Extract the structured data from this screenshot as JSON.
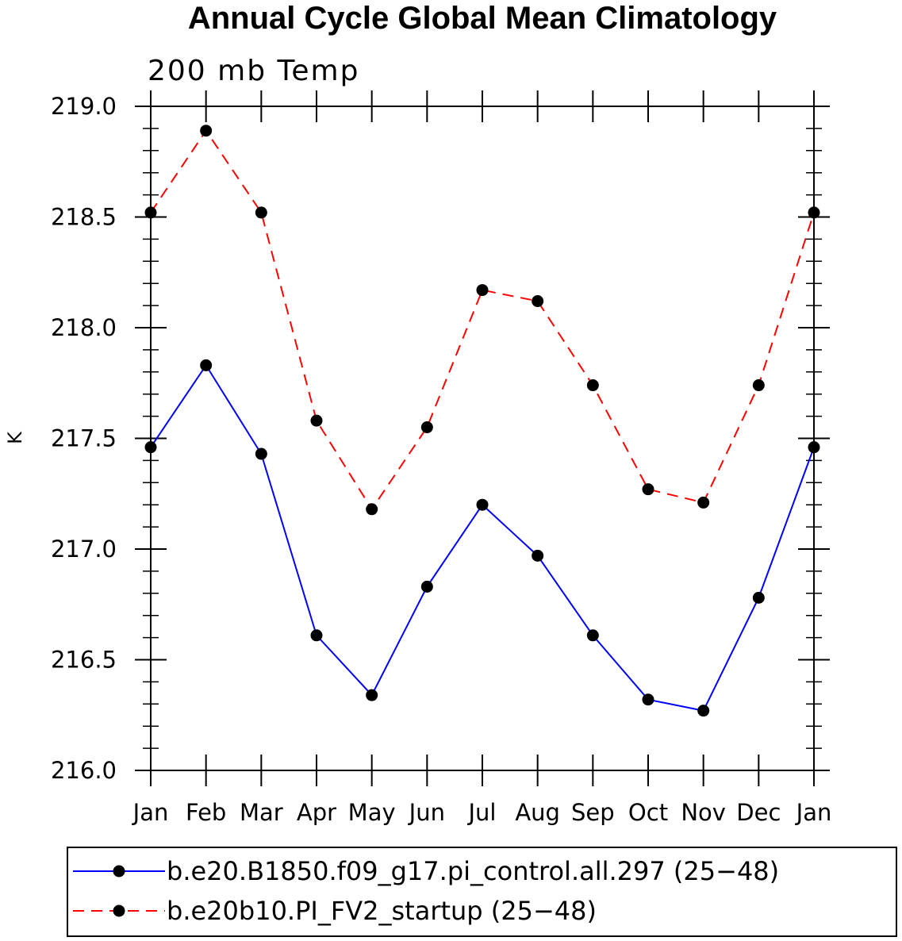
{
  "chart_data": {
    "type": "line",
    "title": "Annual Cycle Global Mean Climatology",
    "subtitle": "200 mb Temp",
    "xlabel": "",
    "ylabel": "K",
    "categories": [
      "Jan",
      "Feb",
      "Mar",
      "Apr",
      "May",
      "Jun",
      "Jul",
      "Aug",
      "Sep",
      "Oct",
      "Nov",
      "Dec",
      "Jan"
    ],
    "ylim": [
      216.0,
      219.0
    ],
    "yticks": [
      216.0,
      216.5,
      217.0,
      217.5,
      218.0,
      218.5,
      219.0
    ],
    "ytick_labels": [
      "216.0",
      "216.5",
      "217.0",
      "217.5",
      "218.0",
      "218.5",
      "219.0"
    ],
    "y_minor_step": 0.1,
    "grid": false,
    "legend_position": "bottom",
    "series": [
      {
        "name": "b.e20.B1850.f09_g17.pi_control.all.297 (25−48)",
        "color": "#0000ff",
        "line_style": "solid",
        "marker": "filled-circle",
        "values": [
          217.46,
          217.83,
          217.43,
          216.61,
          216.34,
          216.83,
          217.2,
          216.97,
          216.61,
          216.32,
          216.27,
          216.78,
          217.46
        ]
      },
      {
        "name": "b.e20b10.PI_FV2_startup (25−48)",
        "color": "#ff0000",
        "line_style": "dashed",
        "marker": "filled-circle",
        "values": [
          218.52,
          218.89,
          218.52,
          217.58,
          217.18,
          217.55,
          218.17,
          218.12,
          217.74,
          217.27,
          217.21,
          217.74,
          218.52
        ]
      }
    ]
  }
}
